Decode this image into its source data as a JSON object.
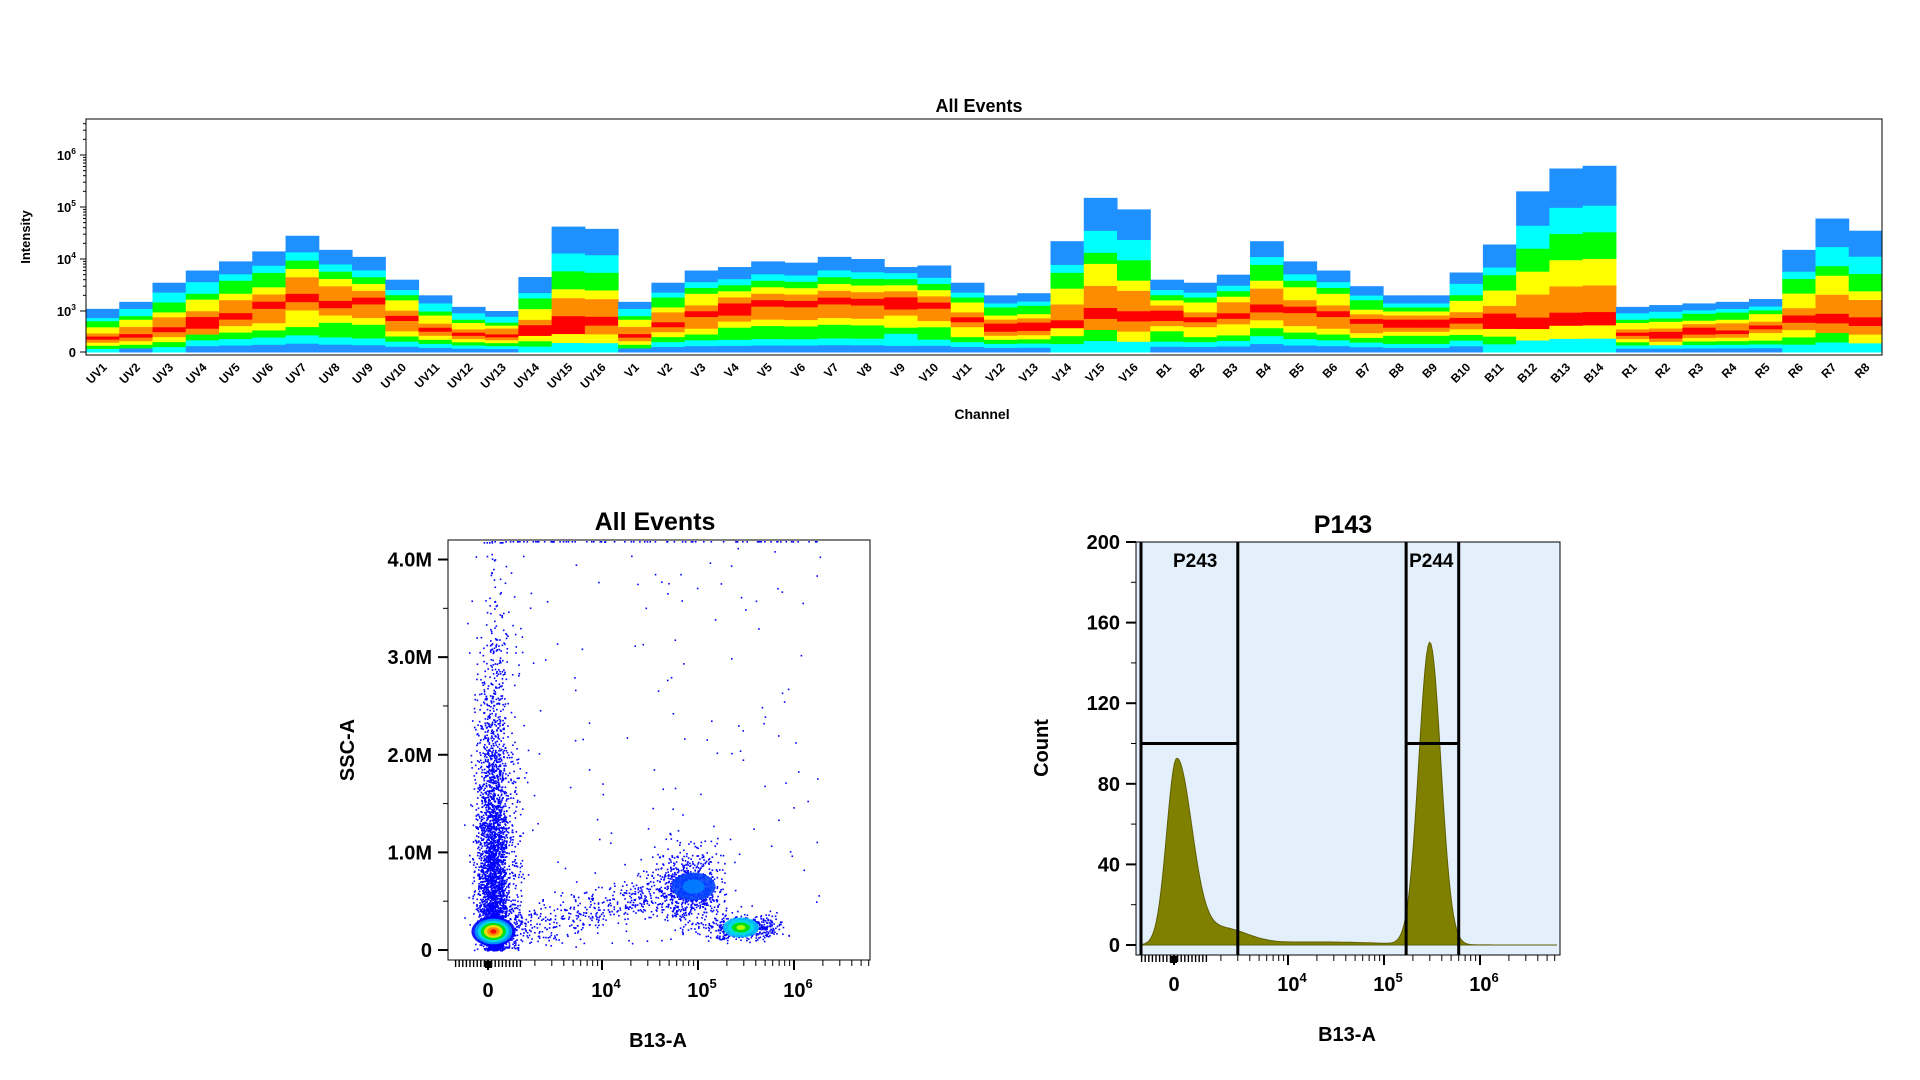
{
  "chart_data": [
    {
      "type": "heatmap",
      "title": "All Events",
      "xlabel": "Channel",
      "ylabel": "Intensity",
      "scale": "log (biexponential near 0)",
      "yticks": [
        "0",
        "10",
        "10",
        "10",
        "10"
      ],
      "ytick_exponents": [
        "",
        "3",
        "4",
        "5",
        "6"
      ],
      "ytick_values": [
        0,
        1000,
        10000,
        100000,
        1000000
      ],
      "colormap": [
        "#0000ff",
        "#1e90ff",
        "#00ffff",
        "#00ff00",
        "#ffff00",
        "#ff8c00",
        "#ff0000"
      ],
      "channels": [
        "UV1",
        "UV2",
        "UV3",
        "UV4",
        "UV5",
        "UV6",
        "UV7",
        "UV8",
        "UV9",
        "UV10",
        "UV11",
        "UV12",
        "UV13",
        "UV14",
        "UV15",
        "UV16",
        "V1",
        "V2",
        "V3",
        "V4",
        "V5",
        "V6",
        "V7",
        "V8",
        "V9",
        "V10",
        "V11",
        "V12",
        "V13",
        "V14",
        "V15",
        "V16",
        "B1",
        "B2",
        "B3",
        "B4",
        "B5",
        "B6",
        "B7",
        "B8",
        "B9",
        "B10",
        "B11",
        "B12",
        "B13",
        "B14",
        "R1",
        "R2",
        "R3",
        "R4",
        "R5",
        "R6",
        "R7",
        "R8"
      ],
      "max_intensity": [
        1100,
        1500,
        3500,
        6000,
        9000,
        14000,
        28000,
        15000,
        11000,
        4000,
        2000,
        1200,
        1000,
        4500,
        42000,
        38000,
        1500,
        3500,
        6000,
        7000,
        9000,
        8500,
        11000,
        10000,
        7000,
        7500,
        3500,
        2000,
        2200,
        22000,
        150000,
        90000,
        4000,
        3500,
        5000,
        22000,
        9000,
        6000,
        3000,
        2000,
        2000,
        5500,
        19000,
        200000,
        550000,
        620000,
        1200,
        1300,
        1400,
        1500,
        1700,
        15000,
        60000,
        35000
      ],
      "dense_intensity": [
        300,
        400,
        500,
        700,
        900,
        1200,
        2000,
        1500,
        1500,
        800,
        500,
        400,
        400,
        500,
        600,
        600,
        400,
        700,
        900,
        1100,
        1300,
        1300,
        1500,
        1600,
        1400,
        1300,
        800,
        600,
        600,
        700,
        800,
        700,
        900,
        800,
        900,
        1200,
        1000,
        900,
        700,
        700,
        700,
        700,
        700,
        700,
        800,
        800,
        400,
        400,
        500,
        500,
        600,
        700,
        700,
        600
      ]
    },
    {
      "type": "scatter",
      "title": "All Events",
      "xlabel": "B13-A",
      "ylabel": "SSC-A",
      "x_scale": "biexponential",
      "xticks": [
        "0",
        "10",
        "10",
        "10"
      ],
      "xtick_exponents": [
        "",
        "4",
        "5",
        "6"
      ],
      "yticks": [
        "0",
        "1.0M",
        "2.0M",
        "3.0M",
        "4.0M"
      ],
      "ylim": [
        0,
        4200000
      ],
      "populations": [
        {
          "x_center": 300,
          "y_center": 250000,
          "x_spread": 1200,
          "y_spread": 900000,
          "count": 3200
        },
        {
          "x_center": 300,
          "y_center": 180000,
          "x_spread": 600,
          "y_spread": 80000,
          "count": 2200
        },
        {
          "x_center": 80000,
          "y_center": 650000,
          "x_spread": 50000,
          "y_spread": 200000,
          "count": 700
        },
        {
          "x_center": 300000,
          "y_center": 230000,
          "x_spread": 70000,
          "y_spread": 60000,
          "count": 600
        }
      ]
    },
    {
      "type": "area",
      "title": "P143",
      "xlabel": "B13-A",
      "ylabel": "Count",
      "x_scale": "biexponential",
      "xticks": [
        "0",
        "10",
        "10",
        "10"
      ],
      "xtick_exponents": [
        "",
        "4",
        "5",
        "6"
      ],
      "yticks": [
        "0",
        "40",
        "80",
        "120",
        "160",
        "200"
      ],
      "ylim": [
        0,
        200
      ],
      "fill_color": "#808000",
      "background_color": "#e3effa",
      "peaks": [
        {
          "x_center": 150,
          "height": 91
        },
        {
          "x_center": 300000,
          "height": 150
        }
      ],
      "gates": [
        {
          "name": "P243",
          "x_min": -500,
          "x_max": 3000,
          "level": 100
        },
        {
          "name": "P244",
          "x_min": 170000,
          "x_max": 600000,
          "level": 100
        }
      ]
    }
  ]
}
